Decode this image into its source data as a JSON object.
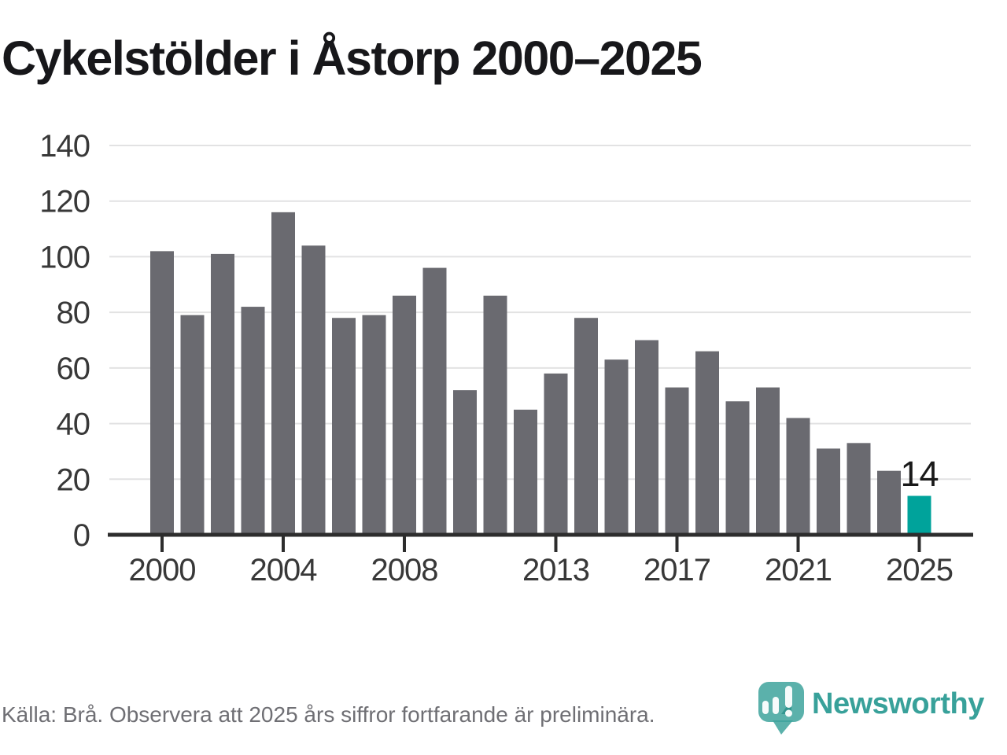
{
  "chart_data": {
    "type": "bar",
    "title": "Cykelstölder i Åstorp 2000–2025",
    "x": [
      2000,
      2001,
      2002,
      2003,
      2004,
      2005,
      2006,
      2007,
      2008,
      2009,
      2010,
      2011,
      2012,
      2013,
      2014,
      2015,
      2016,
      2017,
      2018,
      2019,
      2020,
      2021,
      2022,
      2023,
      2024,
      2025
    ],
    "values": [
      102,
      79,
      101,
      82,
      116,
      104,
      78,
      79,
      86,
      96,
      52,
      86,
      45,
      58,
      78,
      63,
      70,
      53,
      66,
      48,
      53,
      42,
      31,
      33,
      23,
      14
    ],
    "ylim": [
      0,
      140
    ],
    "yticks": [
      0,
      20,
      40,
      60,
      80,
      100,
      120,
      140
    ],
    "xtick_years": [
      2000,
      2004,
      2008,
      2013,
      2017,
      2021,
      2025
    ],
    "grid": "horizontal",
    "legend": "none",
    "annotation": {
      "year": 2025,
      "label": "14"
    },
    "bar_color": "#6a6a70",
    "highlight_color": "#00a39b",
    "gridline_color": "#e2e2e3",
    "axis_color": "#2d2d2d",
    "tick_label_color": "#383838",
    "annotation_color": "#191919"
  },
  "footer": {
    "source": "Källa: Brå. Observera att 2025 års siffror fortfarande är preliminära.",
    "logo_text": "Newsworthy"
  }
}
